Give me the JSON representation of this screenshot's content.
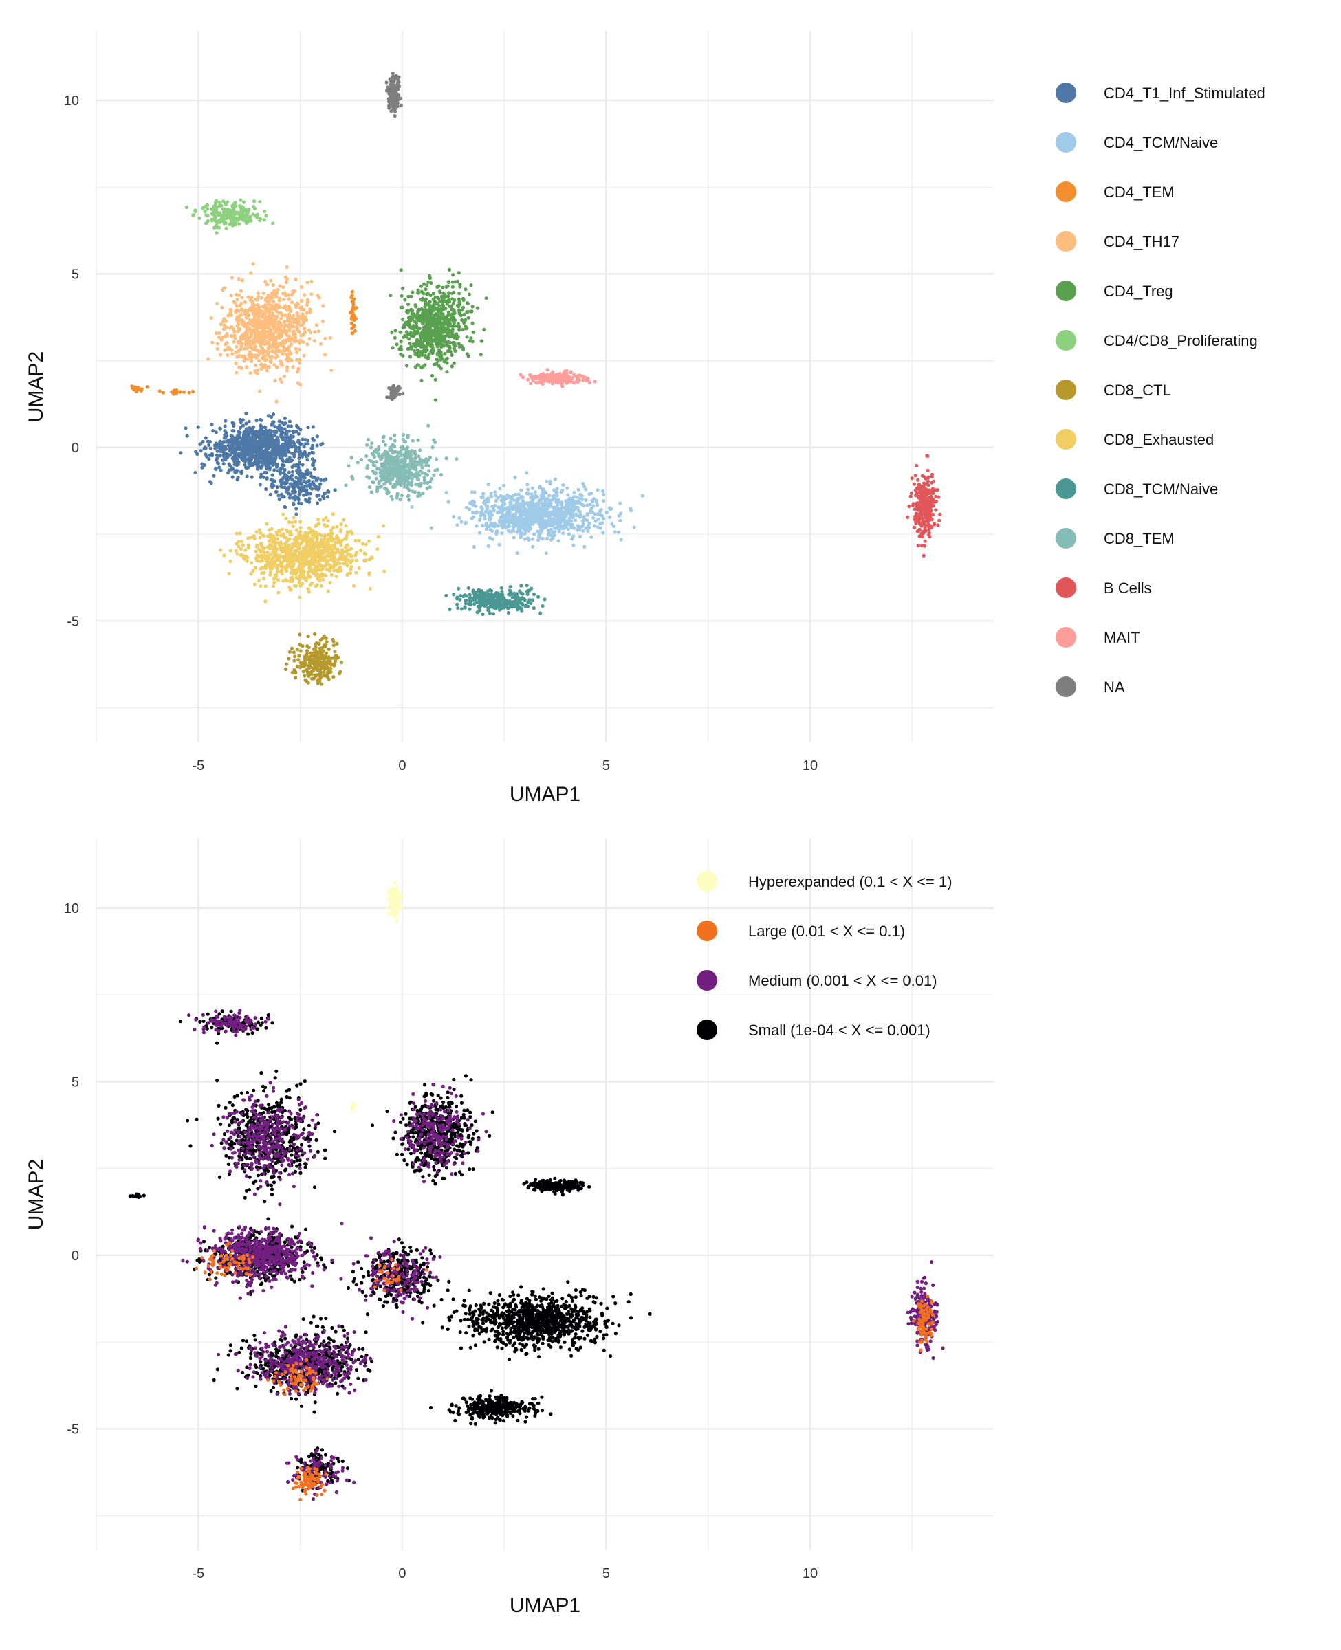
{
  "chart_data": [
    {
      "type": "scatter",
      "title": "",
      "xlabel": "UMAP1",
      "ylabel": "UMAP2",
      "xlim": [
        -7.5,
        14.5
      ],
      "ylim": [
        -8.5,
        12
      ],
      "x_ticks": [
        -5,
        0,
        5,
        10
      ],
      "y_ticks": [
        -5,
        0,
        5,
        10
      ],
      "grid": true,
      "legend_position": "right",
      "legend": [
        {
          "label": "CD4_T1_Inf_Stimulated",
          "color": "#4e79a7"
        },
        {
          "label": "CD4_TCM/Naive",
          "color": "#a0cbe8"
        },
        {
          "label": "CD4_TEM",
          "color": "#f28e2b"
        },
        {
          "label": "CD4_TH17",
          "color": "#ffbe7d"
        },
        {
          "label": "CD4_Treg",
          "color": "#59a14f"
        },
        {
          "label": "CD4/CD8_Proliferating",
          "color": "#8cd17d"
        },
        {
          "label": "CD8_CTL",
          "color": "#b6992d"
        },
        {
          "label": "CD8_Exhausted",
          "color": "#f1ce63"
        },
        {
          "label": "CD8_TCM/Naive",
          "color": "#499894"
        },
        {
          "label": "CD8_TEM",
          "color": "#86bcb6"
        },
        {
          "label": "B Cells",
          "color": "#e15759"
        },
        {
          "label": "MAIT",
          "color": "#ff9d9a"
        },
        {
          "label": "NA",
          "color": "#7f7f7f"
        }
      ],
      "clusters": [
        {
          "series": "CD4_T1_Inf_Stimulated",
          "center": [
            -3.5,
            0.0
          ],
          "spread": [
            1.1,
            0.65
          ],
          "n": 900
        },
        {
          "series": "CD4_T1_Inf_Stimulated",
          "center": [
            -2.5,
            -1.1
          ],
          "spread": [
            0.6,
            0.5
          ],
          "n": 200
        },
        {
          "series": "CD4_TCM/Naive",
          "center": [
            3.3,
            -1.9
          ],
          "spread": [
            1.5,
            0.65
          ],
          "n": 900
        },
        {
          "series": "CD4_TEM",
          "center": [
            -6.5,
            1.7
          ],
          "spread": [
            0.15,
            0.06
          ],
          "n": 15
        },
        {
          "series": "CD4_TEM",
          "center": [
            -5.5,
            1.6
          ],
          "spread": [
            0.4,
            0.05
          ],
          "n": 15
        },
        {
          "series": "CD4_TEM",
          "center": [
            -1.2,
            3.9
          ],
          "spread": [
            0.08,
            0.45
          ],
          "n": 30
        },
        {
          "series": "CD4_TH17",
          "center": [
            -3.3,
            3.4
          ],
          "spread": [
            0.95,
            1.1
          ],
          "n": 800
        },
        {
          "series": "CD4_Treg",
          "center": [
            0.8,
            3.5
          ],
          "spread": [
            0.75,
            1.0
          ],
          "n": 700
        },
        {
          "series": "CD4/CD8_Proliferating",
          "center": [
            -4.2,
            6.7
          ],
          "spread": [
            0.75,
            0.3
          ],
          "n": 200
        },
        {
          "series": "CD8_CTL",
          "center": [
            -2.1,
            -6.2
          ],
          "spread": [
            0.5,
            0.55
          ],
          "n": 250
        },
        {
          "series": "CD8_Exhausted",
          "center": [
            -2.4,
            -3.1
          ],
          "spread": [
            1.2,
            0.75
          ],
          "n": 900
        },
        {
          "series": "CD8_TCM/Naive",
          "center": [
            2.3,
            -4.4
          ],
          "spread": [
            0.85,
            0.3
          ],
          "n": 300
        },
        {
          "series": "CD8_TEM",
          "center": [
            -0.1,
            -0.6
          ],
          "spread": [
            0.75,
            0.7
          ],
          "n": 450
        },
        {
          "series": "B Cells",
          "center": [
            12.8,
            -1.7
          ],
          "spread": [
            0.25,
            0.8
          ],
          "n": 300
        },
        {
          "series": "MAIT",
          "center": [
            3.8,
            2.0
          ],
          "spread": [
            0.6,
            0.15
          ],
          "n": 200
        },
        {
          "series": "NA",
          "center": [
            -0.2,
            10.2
          ],
          "spread": [
            0.12,
            0.4
          ],
          "n": 150
        },
        {
          "series": "NA",
          "center": [
            -0.2,
            1.6
          ],
          "spread": [
            0.15,
            0.2
          ],
          "n": 40
        }
      ]
    },
    {
      "type": "scatter",
      "title": "",
      "xlabel": "UMAP1",
      "ylabel": "UMAP2",
      "xlim": [
        -7.5,
        14.5
      ],
      "ylim": [
        -8.5,
        12
      ],
      "x_ticks": [
        -5,
        0,
        5,
        10
      ],
      "y_ticks": [
        -5,
        0,
        5,
        10
      ],
      "grid": true,
      "legend_position": "top-right",
      "legend": [
        {
          "label": "Hyperexpanded (0.1 < X <= 1)",
          "color": "#fcfdbf"
        },
        {
          "label": "Large (0.01 < X <= 0.1)",
          "color": "#f1711f"
        },
        {
          "label": "Medium (0.001 < X <= 0.01)",
          "color": "#721f81"
        },
        {
          "label": "Small (1e-04 < X <= 0.001)",
          "color": "#000004"
        }
      ],
      "clusters": [
        {
          "series": "Hyperexpanded (0.1 < X <= 1)",
          "center": [
            -0.2,
            10.2
          ],
          "spread": [
            0.12,
            0.4
          ],
          "n": 150
        },
        {
          "series": "Hyperexpanded (0.1 < X <= 1)",
          "center": [
            -1.2,
            4.3
          ],
          "spread": [
            0.05,
            0.2
          ],
          "n": 10
        },
        {
          "series": "Small (1e-04 < X <= 0.001)",
          "center": [
            3.3,
            -1.9
          ],
          "spread": [
            1.5,
            0.65
          ],
          "n": 900
        },
        {
          "series": "Small (1e-04 < X <= 0.001)",
          "center": [
            2.3,
            -4.4
          ],
          "spread": [
            0.85,
            0.3
          ],
          "n": 300
        },
        {
          "series": "Small (1e-04 < X <= 0.001)",
          "center": [
            3.8,
            2.0
          ],
          "spread": [
            0.6,
            0.15
          ],
          "n": 200
        },
        {
          "series": "Small (1e-04 < X <= 0.001)",
          "center": [
            0.8,
            3.5
          ],
          "spread": [
            0.75,
            1.0
          ],
          "n": 500
        },
        {
          "series": "Small (1e-04 < X <= 0.001)",
          "center": [
            -3.3,
            3.4
          ],
          "spread": [
            0.95,
            1.1
          ],
          "n": 500
        },
        {
          "series": "Small (1e-04 < X <= 0.001)",
          "center": [
            -2.4,
            -3.1
          ],
          "spread": [
            1.2,
            0.75
          ],
          "n": 500
        },
        {
          "series": "Small (1e-04 < X <= 0.001)",
          "center": [
            -3.5,
            0.0
          ],
          "spread": [
            1.1,
            0.65
          ],
          "n": 400
        },
        {
          "series": "Small (1e-04 < X <= 0.001)",
          "center": [
            -0.1,
            -0.6
          ],
          "spread": [
            0.75,
            0.7
          ],
          "n": 300
        },
        {
          "series": "Small (1e-04 < X <= 0.001)",
          "center": [
            -4.2,
            6.7
          ],
          "spread": [
            0.75,
            0.3
          ],
          "n": 100
        },
        {
          "series": "Small (1e-04 < X <= 0.001)",
          "center": [
            -2.1,
            -6.2
          ],
          "spread": [
            0.5,
            0.55
          ],
          "n": 100
        },
        {
          "series": "Small (1e-04 < X <= 0.001)",
          "center": [
            -6.5,
            1.7
          ],
          "spread": [
            0.15,
            0.06
          ],
          "n": 10
        },
        {
          "series": "Medium (0.001 < X <= 0.01)",
          "center": [
            -3.5,
            0.0
          ],
          "spread": [
            1.1,
            0.65
          ],
          "n": 500
        },
        {
          "series": "Medium (0.001 < X <= 0.01)",
          "center": [
            -3.3,
            3.4
          ],
          "spread": [
            0.95,
            1.1
          ],
          "n": 300
        },
        {
          "series": "Medium (0.001 < X <= 0.01)",
          "center": [
            -2.4,
            -3.1
          ],
          "spread": [
            1.2,
            0.75
          ],
          "n": 400
        },
        {
          "series": "Medium (0.001 < X <= 0.01)",
          "center": [
            0.8,
            3.5
          ],
          "spread": [
            0.75,
            1.0
          ],
          "n": 200
        },
        {
          "series": "Medium (0.001 < X <= 0.01)",
          "center": [
            -4.2,
            6.7
          ],
          "spread": [
            0.75,
            0.3
          ],
          "n": 100
        },
        {
          "series": "Medium (0.001 < X <= 0.01)",
          "center": [
            12.8,
            -1.7
          ],
          "spread": [
            0.25,
            0.8
          ],
          "n": 220
        },
        {
          "series": "Medium (0.001 < X <= 0.01)",
          "center": [
            -0.1,
            -0.6
          ],
          "spread": [
            0.75,
            0.7
          ],
          "n": 150
        },
        {
          "series": "Medium (0.001 < X <= 0.01)",
          "center": [
            -2.1,
            -6.2
          ],
          "spread": [
            0.5,
            0.55
          ],
          "n": 80
        },
        {
          "series": "Large (0.01 < X <= 0.1)",
          "center": [
            -2.3,
            -6.5
          ],
          "spread": [
            0.3,
            0.4
          ],
          "n": 80
        },
        {
          "series": "Large (0.01 < X <= 0.1)",
          "center": [
            12.8,
            -1.9
          ],
          "spread": [
            0.15,
            0.6
          ],
          "n": 80
        },
        {
          "series": "Large (0.01 < X <= 0.1)",
          "center": [
            -4.3,
            -0.2
          ],
          "spread": [
            0.6,
            0.4
          ],
          "n": 60
        },
        {
          "series": "Large (0.01 < X <= 0.1)",
          "center": [
            -2.6,
            -3.5
          ],
          "spread": [
            0.6,
            0.5
          ],
          "n": 60
        },
        {
          "series": "Large (0.01 < X <= 0.1)",
          "center": [
            -0.3,
            -0.6
          ],
          "spread": [
            0.5,
            0.5
          ],
          "n": 30
        }
      ]
    }
  ]
}
